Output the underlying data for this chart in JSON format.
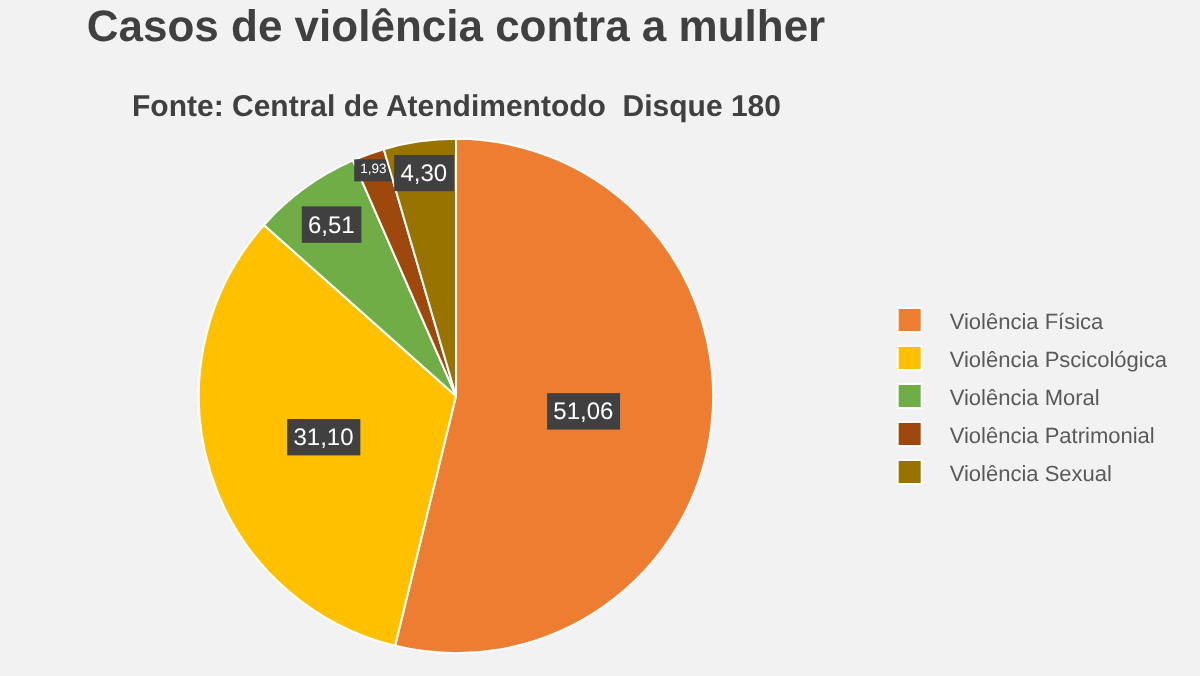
{
  "chart_data": {
    "type": "pie",
    "title": "Casos de violência contra a mulher",
    "subtitle": "Fonte: Central de Atendimentodo  Disque 180",
    "categories": [
      "Violência Física",
      "Violência Pscicológica",
      "Violência Moral",
      "Violência Patrimonial",
      "Violência Sexual"
    ],
    "values": [
      51.06,
      31.1,
      6.51,
      1.93,
      4.3
    ],
    "value_labels": [
      "51,06",
      "31,10",
      "6,51",
      "1,93",
      "4,30"
    ],
    "colors": [
      "#ed7d31",
      "#ffc000",
      "#70ad47",
      "#9e480e",
      "#997300"
    ],
    "legend": "right"
  }
}
